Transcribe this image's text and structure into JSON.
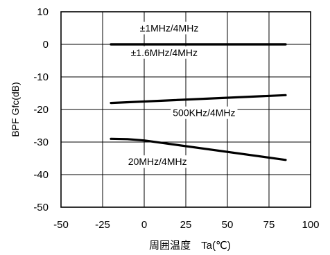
{
  "chart_data": {
    "type": "line",
    "title": "",
    "xlabel": "周囲温度　Ta(℃)",
    "ylabel": "BPF  Gfc(dB)",
    "xlim": [
      -50,
      100
    ],
    "ylim": [
      -50,
      10
    ],
    "x_ticks": [
      "-50",
      "-25",
      "0",
      "25",
      "50",
      "75",
      "100"
    ],
    "y_ticks": [
      "10",
      "0",
      "-10",
      "-20",
      "-30",
      "-40",
      "-50"
    ],
    "grid": true,
    "series": [
      {
        "name": "±1MHz/4MHz",
        "x": [
          -20,
          85
        ],
        "y": [
          0,
          0
        ]
      },
      {
        "name": "±1.6MHz/4MHz",
        "x": [
          -20,
          85
        ],
        "y": [
          0,
          0
        ]
      },
      {
        "name": "500KHz/4MHz",
        "x": [
          -20,
          85
        ],
        "y": [
          -18,
          -15.6
        ]
      },
      {
        "name": "20MHz/4MHz",
        "x": [
          -20,
          -10,
          0,
          85
        ],
        "y": [
          -29,
          -29.1,
          -29.5,
          -35.5
        ]
      }
    ],
    "annotations": [
      {
        "text": "±1MHz/4MHz",
        "x": 15,
        "y": 5
      },
      {
        "text": "±1.6MHz/4MHz",
        "x": 12,
        "y": -2.5
      },
      {
        "text": "500KHz/4MHz",
        "x": 36,
        "y": -21
      },
      {
        "text": "20MHz/4MHz",
        "x": 8,
        "y": -36
      }
    ]
  }
}
